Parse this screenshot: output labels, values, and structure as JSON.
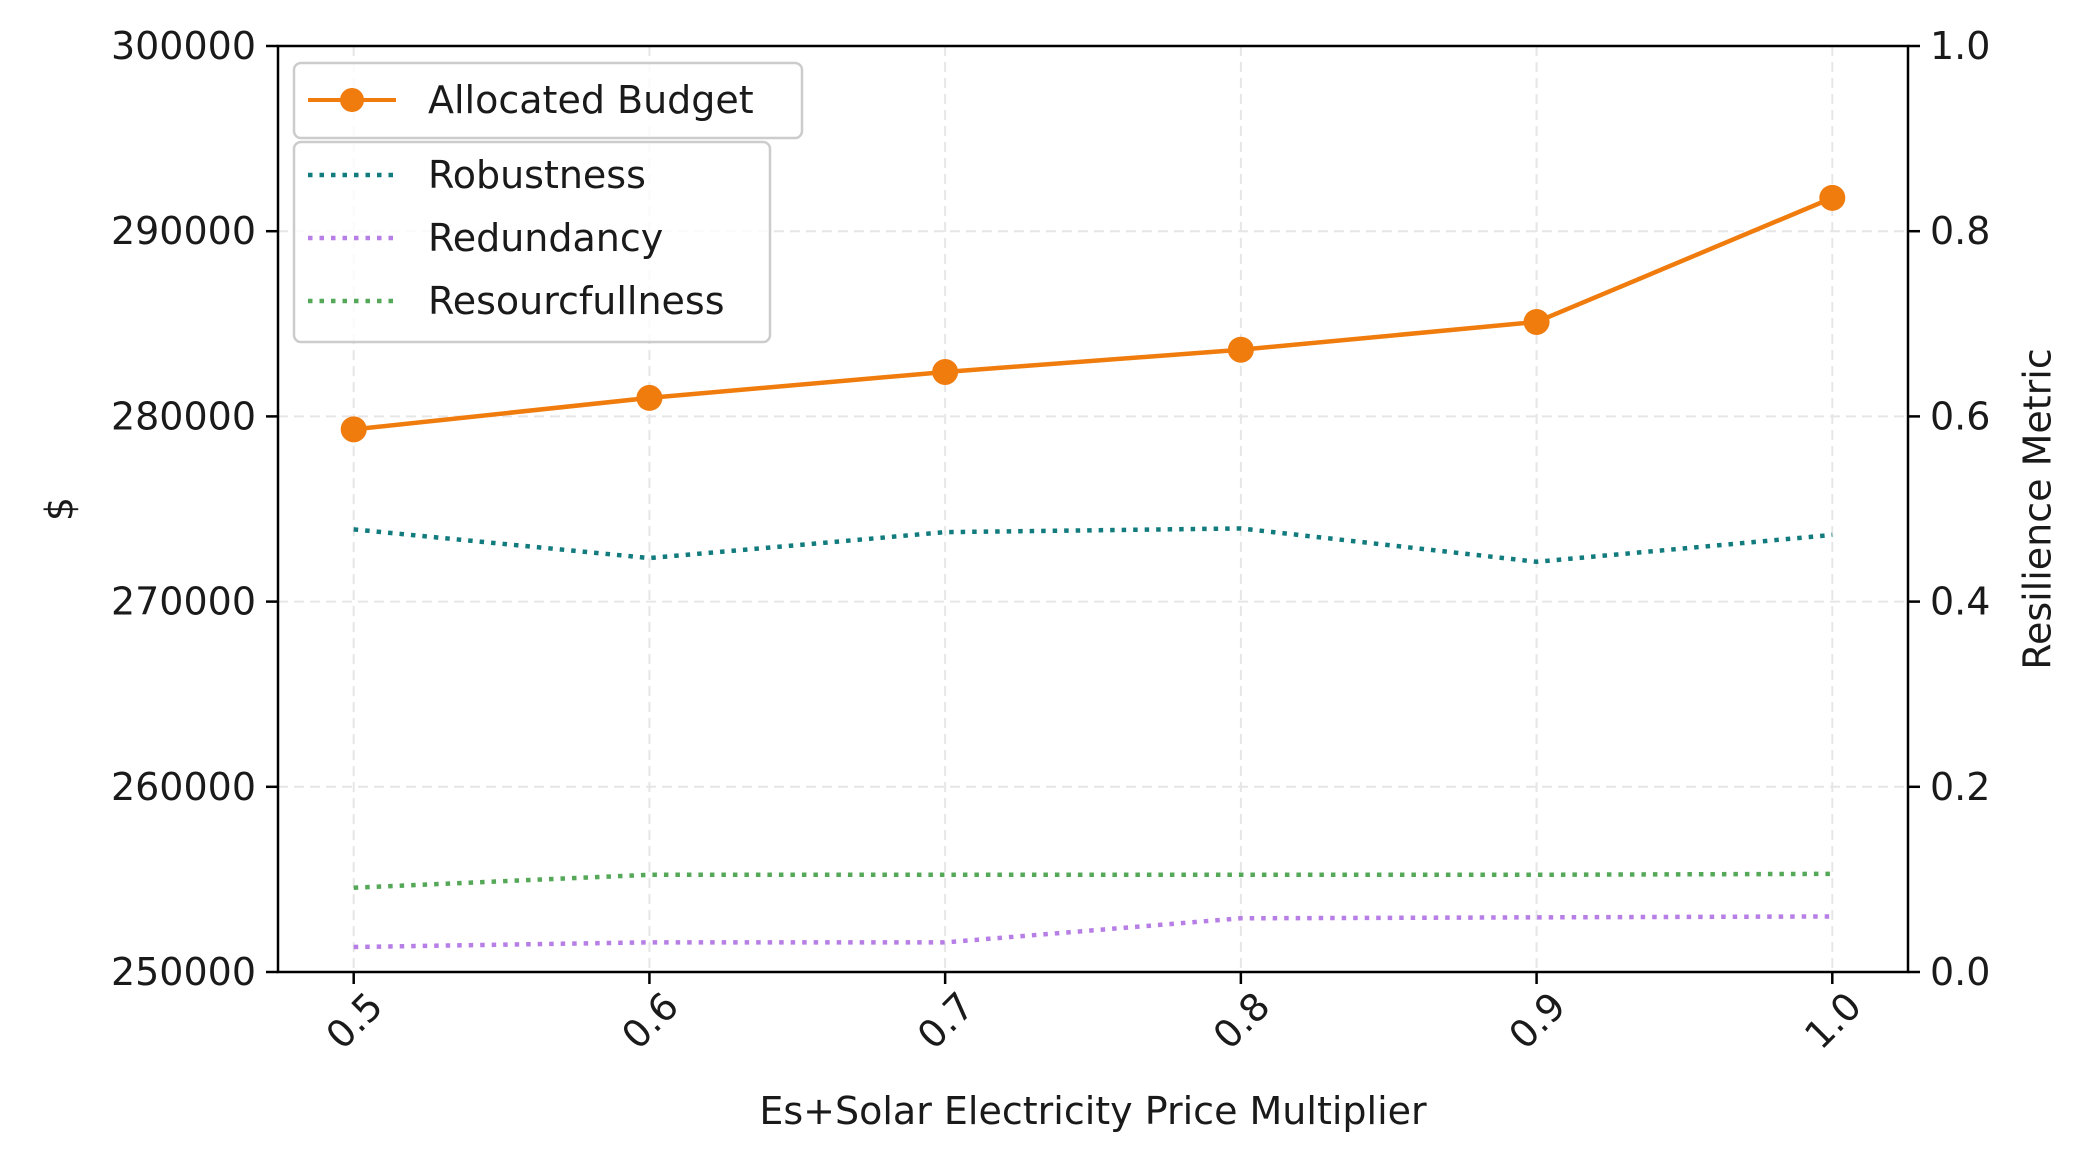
{
  "chart_data": {
    "type": "line",
    "title": "",
    "xlabel": "Es+Solar Electricity Price Multiplier",
    "ylabel": "$",
    "y2label": "Resilience Metric",
    "x": [
      0.5,
      0.6,
      0.7,
      0.8,
      0.9,
      1.0
    ],
    "x_tick_labels": [
      "0.5",
      "0.6",
      "0.7",
      "0.8",
      "0.9",
      "1.0"
    ],
    "ylim": [
      250000,
      300000
    ],
    "y_ticks": [
      250000,
      260000,
      270000,
      280000,
      290000,
      300000
    ],
    "y_tick_labels": [
      "250000",
      "260000",
      "270000",
      "280000",
      "290000",
      "300000"
    ],
    "y2lim": [
      0,
      1
    ],
    "y2_ticks": [
      0,
      0.2,
      0.4,
      0.6,
      0.8,
      1.0
    ],
    "y2_tick_labels": [
      "0.0",
      "0.2",
      "0.4",
      "0.6",
      "0.8",
      "1.0"
    ],
    "grid": true,
    "legend_placement": "top-left",
    "series": [
      {
        "name": "Allocated Budget",
        "axis": "left",
        "style": "solid-marker",
        "color": "#f07c0e",
        "values": [
          279300,
          281000,
          282400,
          283600,
          285100,
          291800
        ]
      },
      {
        "name": "Robustness",
        "axis": "right",
        "style": "dotted",
        "color": "#117b7d",
        "values": [
          0.478,
          0.447,
          0.475,
          0.479,
          0.443,
          0.472
        ]
      },
      {
        "name": "Redundancy",
        "axis": "right",
        "style": "dotted",
        "color": "#b77ee6",
        "values": [
          0.027,
          0.032,
          0.032,
          0.058,
          0.059,
          0.06
        ]
      },
      {
        "name": "Resourcfullness",
        "axis": "right",
        "style": "dotted",
        "color": "#55a858",
        "values": [
          0.091,
          0.105,
          0.105,
          0.105,
          0.105,
          0.106
        ]
      }
    ]
  }
}
